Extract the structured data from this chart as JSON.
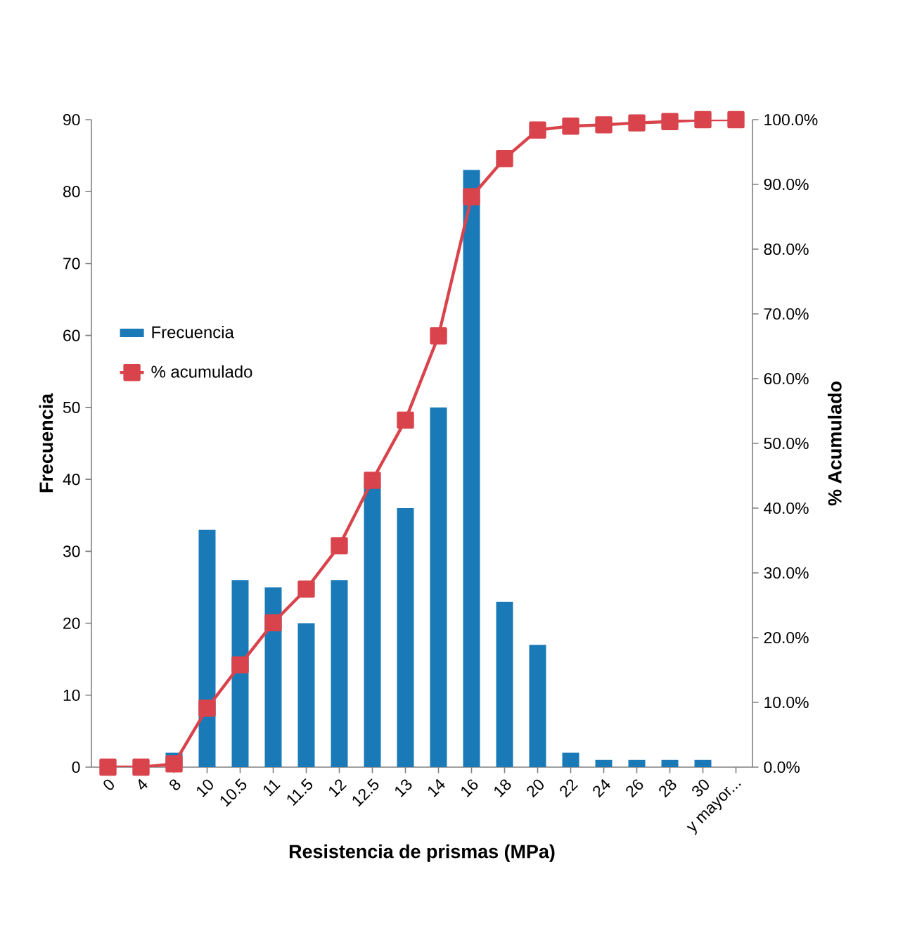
{
  "chart_data": {
    "type": "bar",
    "xlabel": "Resistencia de prismas (MPa)",
    "ylabel": "Frecuencia",
    "y2label": "% Acumulado",
    "categories": [
      "0",
      "4",
      "8",
      "10",
      "10.5",
      "11",
      "11.5",
      "12",
      "12.5",
      "13",
      "14",
      "16",
      "18",
      "20",
      "22",
      "24",
      "26",
      "28",
      "30",
      "y mayor..."
    ],
    "series": [
      {
        "name": "Frecuencia",
        "color": "#1a7ab8",
        "values": [
          0,
          0,
          2,
          33,
          26,
          25,
          20,
          26,
          39,
          36,
          50,
          83,
          23,
          17,
          2,
          1,
          1,
          1,
          1,
          0
        ]
      },
      {
        "name": "% acumulado",
        "type": "line",
        "axis": "y2",
        "color": "#d9434b",
        "marker": "square",
        "values": [
          0,
          0,
          0.5,
          9.1,
          15.8,
          22.3,
          27.5,
          34.2,
          44.3,
          53.6,
          66.6,
          88.1,
          94.0,
          98.4,
          99.0,
          99.2,
          99.5,
          99.7,
          100,
          100
        ]
      }
    ],
    "ylim": [
      0,
      90
    ],
    "yticks": [
      0,
      10,
      20,
      30,
      40,
      50,
      60,
      70,
      80,
      90
    ],
    "y2lim": [
      0,
      100
    ],
    "y2ticks": [
      {
        "value": 0,
        "label": "0.0%"
      },
      {
        "value": 10,
        "label": "10.0%"
      },
      {
        "value": 20,
        "label": "20.0%"
      },
      {
        "value": 30,
        "label": "30.0%"
      },
      {
        "value": 40,
        "label": "40.0%"
      },
      {
        "value": 50,
        "label": "50.0%"
      },
      {
        "value": 60,
        "label": "60.0%"
      },
      {
        "value": 70,
        "label": "70.0%"
      },
      {
        "value": 80,
        "label": "80.0%"
      },
      {
        "value": 90,
        "label": "90.0%"
      },
      {
        "value": 100,
        "label": "100.0%"
      }
    ],
    "legend": "left",
    "grid": false
  }
}
